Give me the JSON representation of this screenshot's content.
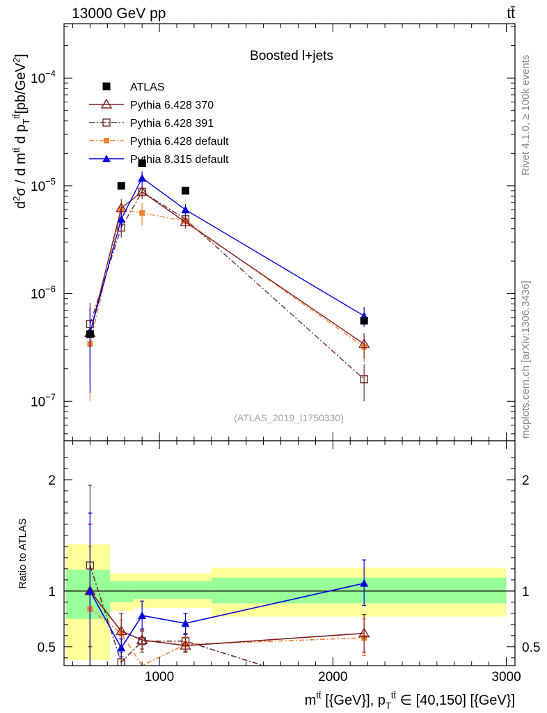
{
  "header": {
    "left": "13000 GeV pp",
    "right": "tt̄"
  },
  "side": {
    "rivet": "Rivet 4.1.0, ≥ 100k events",
    "mcplots": "mcplots.cern.ch [arXiv:1306.3436]"
  },
  "colors": {
    "atlas": "#000000",
    "p370": "#7f1f1f",
    "p391": "#6b2d2d",
    "p6def": "#f58232",
    "p8": "#0000e0",
    "band_inner": "#99ff99",
    "band_outer": "#ffff99"
  },
  "chart_data": [
    {
      "type": "line",
      "title": "Boosted l+jets",
      "watermark": "(ATLAS_2019_I1750330)",
      "ylabel_parts": {
        "pre": "d",
        "sup1": "2",
        "mid": "σ / d m",
        "supA": "tt̄",
        "mid2": " d p",
        "subT": "T",
        "supB": "tt̄",
        "unit_pre": "[pb/GeV",
        "unit_sup": "2",
        "unit_post": "]"
      },
      "yscale": "log",
      "ylim": [
        4.3e-08,
        0.00032
      ],
      "xlim": [
        450,
        3050
      ],
      "ytick_labels": [
        {
          "value": 1e-07,
          "mant": "10",
          "exp": "−7"
        },
        {
          "value": 1e-06,
          "mant": "10",
          "exp": "−6"
        },
        {
          "value": 1e-05,
          "mant": "10",
          "exp": "−5"
        },
        {
          "value": 0.0001,
          "mant": "10",
          "exp": "−4"
        }
      ],
      "bins": [
        [
          450,
          715
        ],
        [
          715,
          850
        ],
        [
          850,
          1000
        ],
        [
          1000,
          1300
        ],
        [
          1300,
          3000
        ]
      ],
      "legend": [
        {
          "name": "ATLAS",
          "key": "atlas"
        },
        {
          "name": "Pythia 6.428 370",
          "key": "p370"
        },
        {
          "name": "Pythia 6.428 391",
          "key": "p391"
        },
        {
          "name": "Pythia 6.428 default",
          "key": "p6def"
        },
        {
          "name": "Pythia 8.315 default",
          "key": "p8"
        }
      ],
      "series": [
        {
          "name": "ATLAS",
          "key": "atlas",
          "x": [
            600,
            780,
            900,
            1150,
            2180
          ],
          "y": [
            4.2e-07,
            1e-05,
            1.62e-05,
            9e-06,
            5.6e-07
          ],
          "err_lo": [
            4.2e-07,
            1e-05,
            1.62e-05,
            9e-06,
            5.6e-07
          ],
          "err_hi": [
            4.2e-07,
            1e-05,
            1.62e-05,
            9e-06,
            5.6e-07
          ]
        },
        {
          "name": "Pythia 6.428 370",
          "key": "p370",
          "x": [
            600,
            780,
            900,
            1150,
            2180
          ],
          "y": [
            4.3e-07,
            6.2e-06,
            8.8e-06,
            4.6e-06,
            3.4e-07
          ],
          "err_lo": [
            1.5e-07,
            5e-06,
            7.5e-06,
            4e-06,
            2.5e-07
          ],
          "err_hi": [
            7e-07,
            7.5e-06,
            1e-05,
            5.3e-06,
            4.3e-07
          ]
        },
        {
          "name": "Pythia 6.428 391",
          "key": "p391",
          "x": [
            600,
            780,
            900,
            1150,
            2180
          ],
          "y": [
            5.2e-07,
            4.1e-06,
            8.8e-06,
            4.9e-06,
            1.6e-07
          ],
          "err_lo": [
            2.2e-07,
            3.3e-06,
            7.6e-06,
            4.2e-06,
            1e-07
          ],
          "err_hi": [
            8.2e-07,
            5e-06,
            1e-05,
            5.6e-06,
            2.2e-07
          ]
        },
        {
          "name": "Pythia 6.428 default",
          "key": "p6def",
          "x": [
            600,
            780,
            900,
            1150,
            2180
          ],
          "y": [
            3.4e-07,
            6e-06,
            5.6e-06,
            4.7e-06,
            3.2e-07
          ],
          "err_lo": [
            1e-07,
            5e-06,
            4.3e-06,
            4.1e-06,
            2.3e-07
          ],
          "err_hi": [
            5.8e-07,
            7e-06,
            6.9e-06,
            5.3e-06,
            4.1e-07
          ]
        },
        {
          "name": "Pythia 8.315 default",
          "key": "p8",
          "x": [
            600,
            780,
            900,
            1150,
            2180
          ],
          "y": [
            4.3e-07,
            4.9e-06,
            1.18e-05,
            6e-06,
            6.2e-07
          ],
          "err_lo": [
            1.2e-07,
            4.1e-06,
            1e-05,
            5.2e-06,
            4.9e-07
          ],
          "err_hi": [
            7.4e-07,
            5.7e-06,
            1.36e-05,
            6.8e-06,
            7.5e-07
          ]
        }
      ]
    },
    {
      "type": "line",
      "ylabel": "Ratio to ATLAS",
      "ylim": [
        0.33,
        2.35
      ],
      "xlim": [
        450,
        3050
      ],
      "xlabel_parts": {
        "pre": "m",
        "sup1": "tt̄",
        "mid": " [{GeV}], p",
        "subT": "T",
        "sup2": "tt̄",
        "post": " ∈ [40,150] [{GeV}]"
      },
      "xtick_labels": [
        {
          "value": 1000,
          "label": "1000"
        },
        {
          "value": 2000,
          "label": "2000"
        },
        {
          "value": 3000,
          "label": "3000"
        }
      ],
      "ytick_labels": [
        {
          "value": 0.5,
          "label": "0.5"
        },
        {
          "value": 1,
          "label": "1"
        },
        {
          "value": 2,
          "label": "2"
        }
      ],
      "bands": {
        "inner": [
          [
            0.75,
            1.19
          ],
          [
            0.9,
            1.09
          ],
          [
            0.93,
            1.09
          ],
          [
            0.93,
            1.09
          ],
          [
            0.89,
            1.12
          ]
        ],
        "outer": [
          [
            0.38,
            1.42
          ],
          [
            0.82,
            1.16
          ],
          [
            0.85,
            1.16
          ],
          [
            0.85,
            1.16
          ],
          [
            0.77,
            1.21
          ]
        ]
      },
      "series": [
        {
          "name": "Pythia 6.428 370",
          "key": "p370",
          "x": [
            600,
            780,
            900,
            1150,
            2180
          ],
          "y": [
            1.0,
            0.64,
            0.56,
            0.51,
            0.62
          ],
          "err_lo": [
            0.3,
            0.5,
            0.48,
            0.45,
            0.45
          ],
          "err_hi": [
            1.6,
            0.8,
            0.64,
            0.58,
            0.79
          ]
        },
        {
          "name": "Pythia 6.428 391",
          "key": "p391",
          "x": [
            600,
            780,
            900,
            1150,
            1600
          ],
          "y": [
            1.23,
            0.36,
            0.55,
            0.55,
            0.33
          ],
          "err_lo": [
            0.5,
            0.33,
            0.45,
            0.46,
            0.33
          ],
          "err_hi": [
            1.95,
            0.45,
            0.65,
            0.62,
            0.33
          ]
        },
        {
          "name": "Pythia 6.428 default",
          "key": "p6def",
          "x": [
            600,
            780,
            900,
            1150,
            2180
          ],
          "y": [
            0.84,
            0.62,
            0.33,
            0.52,
            0.58
          ],
          "err_lo": [
            0.25,
            0.5,
            0.33,
            0.45,
            0.42
          ],
          "err_hi": [
            1.4,
            0.74,
            0.33,
            0.59,
            0.75
          ]
        },
        {
          "name": "Pythia 8.315 default",
          "key": "p8",
          "x": [
            600,
            780,
            900,
            1150,
            2180
          ],
          "y": [
            1.0,
            0.49,
            0.78,
            0.71,
            1.07
          ],
          "err_lo": [
            0.33,
            0.41,
            0.66,
            0.61,
            0.87
          ],
          "err_hi": [
            1.7,
            0.57,
            0.91,
            0.8,
            1.28
          ]
        }
      ]
    }
  ]
}
